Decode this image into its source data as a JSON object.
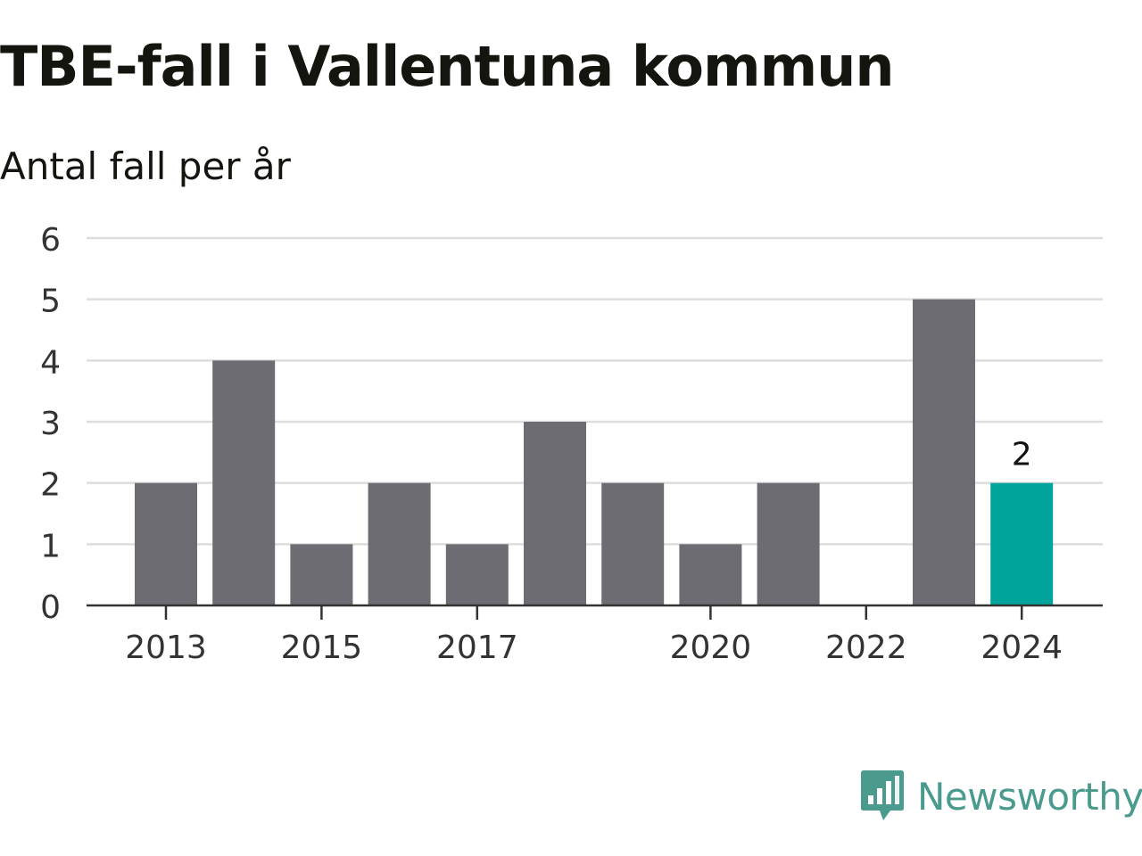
{
  "title": "TBE-fall i Vallentuna kommun",
  "subtitle": "Antal fall per år",
  "brand": {
    "name": "Newsworthy",
    "icon": "bar-chart-speech-bubble-icon",
    "color": "#4a9a8d"
  },
  "colors": {
    "bar": "#6d6c72",
    "highlight": "#00a49a",
    "grid": "#dddddd",
    "axis": "#333333",
    "text": "#333333"
  },
  "chart_data": {
    "type": "bar",
    "title": "TBE-fall i Vallentuna kommun",
    "subtitle": "Antal fall per år",
    "categories": [
      2013,
      2014,
      2015,
      2016,
      2017,
      2018,
      2019,
      2020,
      2021,
      2022,
      2023,
      2024
    ],
    "values": [
      2,
      4,
      1,
      2,
      1,
      3,
      2,
      1,
      2,
      0,
      5,
      2
    ],
    "x_tick_labels": [
      "2013",
      "2015",
      "2017",
      "2020",
      "2022",
      "2024"
    ],
    "y_ticks": [
      0,
      1,
      2,
      3,
      4,
      5,
      6
    ],
    "ylim": [
      0,
      6
    ],
    "grid": true,
    "highlight": {
      "category": 2024,
      "label": "2"
    },
    "xlabel": "",
    "ylabel": ""
  }
}
